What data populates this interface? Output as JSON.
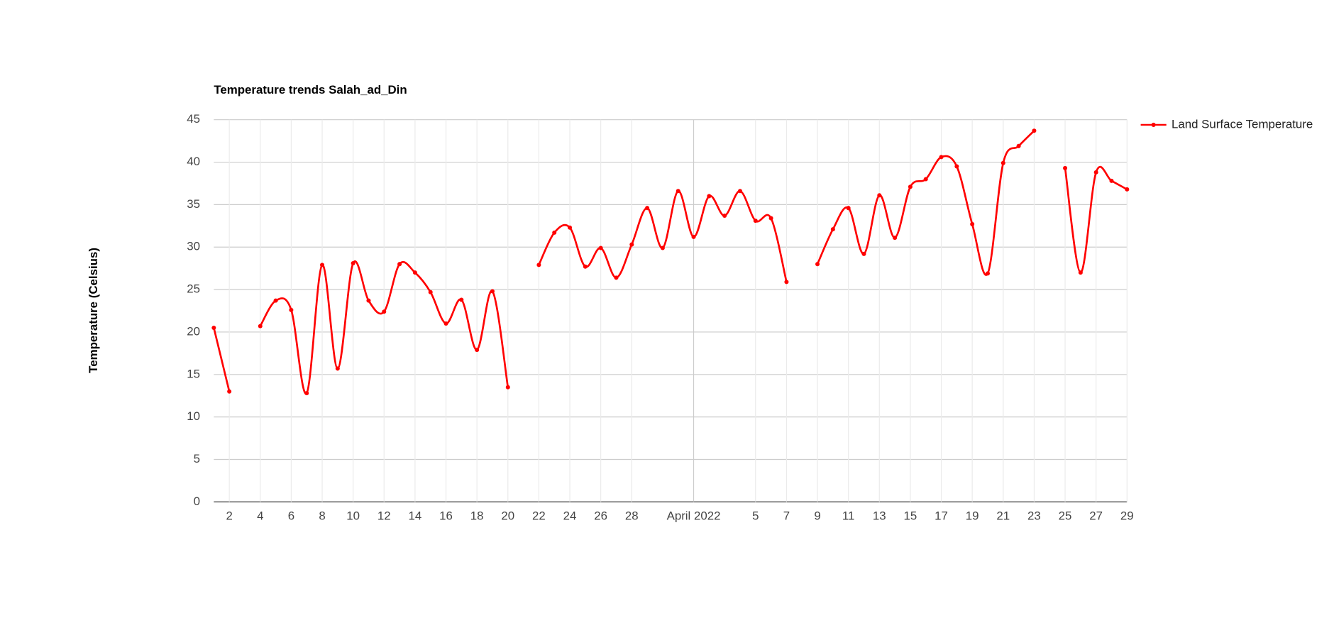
{
  "chart_data": {
    "type": "line",
    "title": "Temperature trends Salah_ad_Din",
    "y_label": "Temperature (Celsius)",
    "x": [
      "2022-03-01",
      "2022-03-02",
      "2022-03-03",
      "2022-03-04",
      "2022-03-05",
      "2022-03-06",
      "2022-03-07",
      "2022-03-08",
      "2022-03-09",
      "2022-03-10",
      "2022-03-11",
      "2022-03-12",
      "2022-03-13",
      "2022-03-14",
      "2022-03-15",
      "2022-03-16",
      "2022-03-17",
      "2022-03-18",
      "2022-03-19",
      "2022-03-20",
      "2022-03-21",
      "2022-03-22",
      "2022-03-23",
      "2022-03-24",
      "2022-03-25",
      "2022-03-26",
      "2022-03-27",
      "2022-03-28",
      "2022-03-29",
      "2022-03-30",
      "2022-03-31",
      "2022-04-01",
      "2022-04-02",
      "2022-04-03",
      "2022-04-04",
      "2022-04-05",
      "2022-04-06",
      "2022-04-07",
      "2022-04-08",
      "2022-04-09",
      "2022-04-10",
      "2022-04-11",
      "2022-04-12",
      "2022-04-13",
      "2022-04-14",
      "2022-04-15",
      "2022-04-16",
      "2022-04-17",
      "2022-04-18",
      "2022-04-19",
      "2022-04-20",
      "2022-04-21",
      "2022-04-22",
      "2022-04-23",
      "2022-04-24",
      "2022-04-25",
      "2022-04-26",
      "2022-04-27",
      "2022-04-28",
      "2022-04-29"
    ],
    "series": [
      {
        "name": "Land Surface Temperature",
        "color": "#ff0000",
        "values": [
          20.5,
          13.0,
          null,
          20.7,
          23.7,
          22.6,
          12.8,
          27.9,
          15.7,
          28.1,
          23.7,
          22.4,
          28.0,
          27.0,
          24.7,
          21.0,
          23.8,
          17.9,
          24.8,
          13.5,
          null,
          27.9,
          31.7,
          32.3,
          27.7,
          29.9,
          26.4,
          30.3,
          34.6,
          29.9,
          36.6,
          31.2,
          36.0,
          33.7,
          36.6,
          33.1,
          33.4,
          25.9,
          null,
          28.0,
          32.1,
          34.6,
          29.2,
          36.1,
          31.1,
          37.1,
          38.0,
          40.6,
          39.5,
          32.7,
          26.9,
          39.9,
          41.9,
          43.7,
          null,
          39.3,
          27.0,
          38.8,
          37.8,
          36.8
        ]
      }
    ],
    "xlim": [
      "2022-03-01",
      "2022-04-29"
    ],
    "xticks": [
      {
        "value": "2022-03-02",
        "label": "2"
      },
      {
        "value": "2022-03-04",
        "label": "4"
      },
      {
        "value": "2022-03-06",
        "label": "6"
      },
      {
        "value": "2022-03-08",
        "label": "8"
      },
      {
        "value": "2022-03-10",
        "label": "10"
      },
      {
        "value": "2022-03-12",
        "label": "12"
      },
      {
        "value": "2022-03-14",
        "label": "14"
      },
      {
        "value": "2022-03-16",
        "label": "16"
      },
      {
        "value": "2022-03-18",
        "label": "18"
      },
      {
        "value": "2022-03-20",
        "label": "20"
      },
      {
        "value": "2022-03-22",
        "label": "22"
      },
      {
        "value": "2022-03-24",
        "label": "24"
      },
      {
        "value": "2022-03-26",
        "label": "26"
      },
      {
        "value": "2022-03-28",
        "label": "28"
      },
      {
        "value": "2022-04-01",
        "label": "April 2022"
      },
      {
        "value": "2022-04-05",
        "label": "5"
      },
      {
        "value": "2022-04-07",
        "label": "7"
      },
      {
        "value": "2022-04-09",
        "label": "9"
      },
      {
        "value": "2022-04-11",
        "label": "11"
      },
      {
        "value": "2022-04-13",
        "label": "13"
      },
      {
        "value": "2022-04-15",
        "label": "15"
      },
      {
        "value": "2022-04-17",
        "label": "17"
      },
      {
        "value": "2022-04-19",
        "label": "19"
      },
      {
        "value": "2022-04-21",
        "label": "21"
      },
      {
        "value": "2022-04-23",
        "label": "23"
      },
      {
        "value": "2022-04-25",
        "label": "25"
      },
      {
        "value": "2022-04-27",
        "label": "27"
      },
      {
        "value": "2022-04-29",
        "label": "29"
      }
    ],
    "ylim": [
      0,
      45
    ],
    "yticks": [
      0,
      5,
      10,
      15,
      20,
      25,
      30,
      35,
      40,
      45
    ],
    "grid": true,
    "legend": "right"
  }
}
